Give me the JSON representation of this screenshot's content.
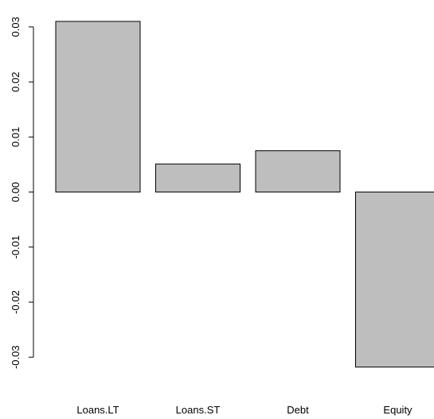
{
  "chart_data": {
    "type": "bar",
    "categories": [
      "Loans.LT",
      "Loans.ST",
      "Debt",
      "Equity"
    ],
    "values": [
      0.031,
      0.0051,
      0.0075,
      -0.0318
    ],
    "ylim": [
      -0.033,
      0.032
    ],
    "yticks": [
      -0.03,
      -0.02,
      -0.01,
      0.0,
      0.01,
      0.02,
      0.03
    ],
    "ytick_labels": [
      "-0.03",
      "-0.02",
      "-0.01",
      "0.00",
      "0.01",
      "0.02",
      "0.03"
    ],
    "bar_fill": "#bebebe",
    "bar_stroke": "#000000",
    "grid": false,
    "legend": "none"
  }
}
